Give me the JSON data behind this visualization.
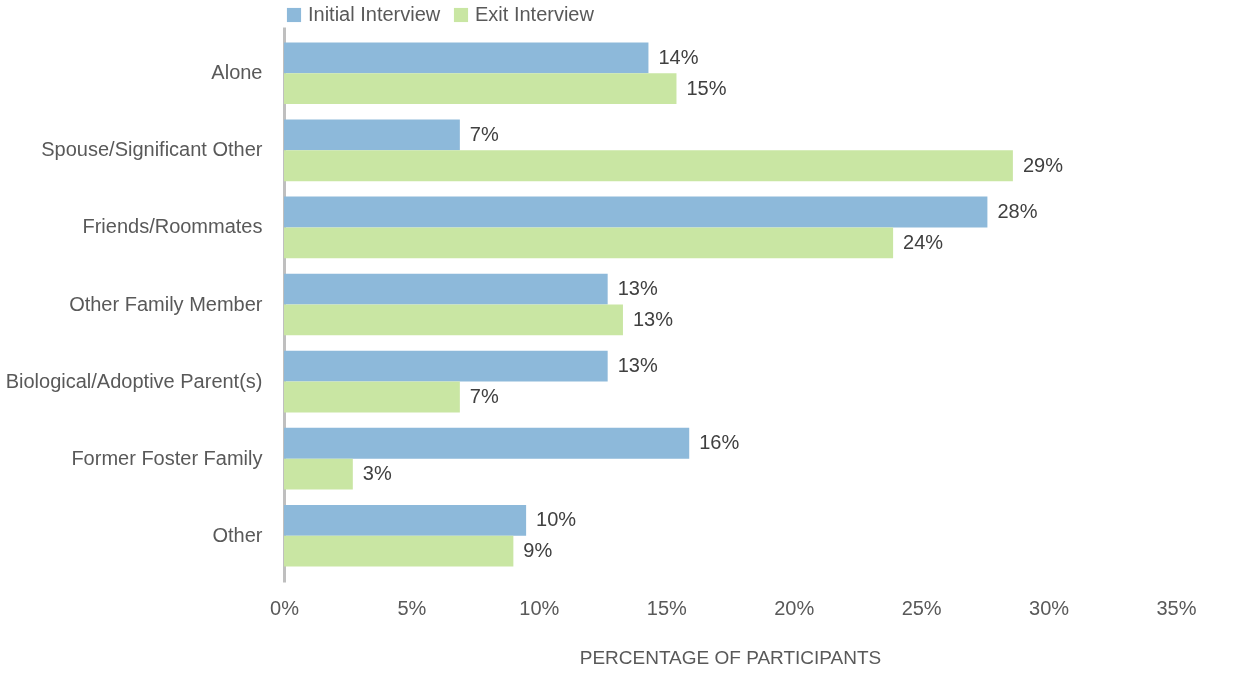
{
  "chart_data": {
    "type": "bar",
    "orientation": "horizontal",
    "xlabel": "PERCENTAGE OF PARTICIPANTS",
    "categories": [
      "Alone",
      "Spouse/Significant Other",
      "Friends/Roommates",
      "Other Family Member",
      "Biological/Adoptive Parent(s)",
      "Former Foster Family",
      "Other"
    ],
    "series": [
      {
        "name": "Initial Interview",
        "color": "#8db9da",
        "values": [
          14.3,
          6.9,
          27.6,
          12.7,
          12.7,
          15.9,
          9.5
        ],
        "value_labels": [
          "14%",
          "7%",
          "28%",
          "13%",
          "13%",
          "16%",
          "10%"
        ]
      },
      {
        "name": "Exit Interview",
        "color": "#c9e6a3",
        "values": [
          15.4,
          28.6,
          23.9,
          13.3,
          6.9,
          2.7,
          9.0
        ],
        "value_labels": [
          "15%",
          "29%",
          "24%",
          "13%",
          "7%",
          "3%",
          "9%"
        ]
      }
    ],
    "xlim": [
      0,
      35
    ],
    "xticks": [
      {
        "value": 0,
        "label": "0%"
      },
      {
        "value": 5,
        "label": "5%"
      },
      {
        "value": 10,
        "label": "10%"
      },
      {
        "value": 15,
        "label": "15%"
      },
      {
        "value": 20,
        "label": "20%"
      },
      {
        "value": 25,
        "label": "25%"
      },
      {
        "value": 30,
        "label": "30%"
      },
      {
        "value": 35,
        "label": "35%"
      }
    ],
    "grid": false,
    "legend": "top"
  }
}
